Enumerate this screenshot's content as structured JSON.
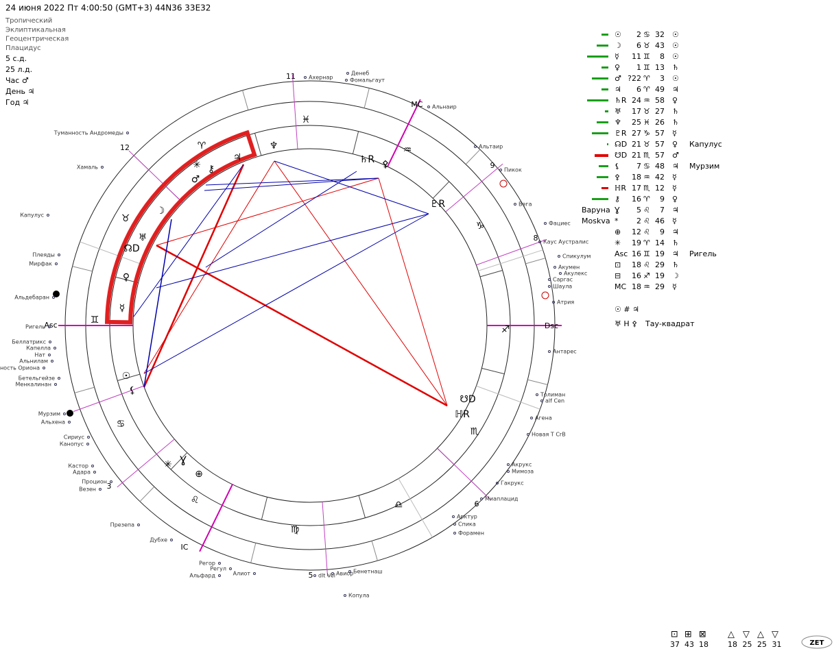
{
  "header": "24 июня 2022  Пт   4:00:50 (GMT+3) 44N36  33E32",
  "settings": [
    "Тропический",
    "Эклиптикальная",
    "Геоцентрическая",
    "Плацидус"
  ],
  "info": [
    "5 с.д.",
    "25 л.д.",
    "Час ♂",
    "День ♃",
    "Год ♃"
  ],
  "table": {
    "rows": [
      {
        "glyph": "☉",
        "deg": "2",
        "sign": "♋",
        "min": "32",
        "ruler": "☉"
      },
      {
        "glyph": "☽",
        "deg": "6",
        "sign": "♉",
        "min": "43",
        "ruler": "☉"
      },
      {
        "glyph": "☿",
        "deg": "11",
        "sign": "♊",
        "min": "8",
        "ruler": "☉"
      },
      {
        "glyph": "♀",
        "deg": "1",
        "sign": "♊",
        "min": "13",
        "ruler": "♄"
      },
      {
        "glyph": "♂",
        "deg": "?22",
        "sign": "♈",
        "min": "3",
        "ruler": "☉"
      },
      {
        "glyph": "♃",
        "deg": "6",
        "sign": "♈",
        "min": "49",
        "ruler": "♃"
      },
      {
        "glyph": "♄R",
        "deg": "24",
        "sign": "♒",
        "min": "58",
        "ruler": "♀"
      },
      {
        "glyph": "♅",
        "deg": "17",
        "sign": "♉",
        "min": "27",
        "ruler": "♄"
      },
      {
        "glyph": "♆",
        "deg": "25",
        "sign": "♓",
        "min": "26",
        "ruler": "♄"
      },
      {
        "glyph": "♇R",
        "deg": "27",
        "sign": "♑",
        "min": "57",
        "ruler": "☿"
      },
      {
        "glyph": "☊D",
        "deg": "21",
        "sign": "♉",
        "min": "57",
        "ruler": "♀",
        "note": "Капулус"
      },
      {
        "glyph": "☋D",
        "deg": "21",
        "sign": "♏",
        "min": "57",
        "ruler": "♂"
      },
      {
        "glyph": "⚸",
        "deg": "7",
        "sign": "♋",
        "min": "48",
        "ruler": "♃",
        "note": "Мурзим"
      },
      {
        "glyph": "⚴",
        "deg": "18",
        "sign": "♒",
        "min": "42",
        "ruler": "☿"
      },
      {
        "glyph": "ℍR",
        "deg": "17",
        "sign": "♏",
        "min": "12",
        "ruler": "☿"
      },
      {
        "glyph": "⚷",
        "deg": "16",
        "sign": "♈",
        "min": "9",
        "ruler": "♀"
      },
      {
        "name": "Варуна",
        "glyph": "Ɣ",
        "deg": "5",
        "sign": "♌",
        "min": "7",
        "ruler": "♃"
      },
      {
        "name": "Moskva",
        "glyph": "*",
        "deg": "2",
        "sign": "♌",
        "min": "46",
        "ruler": "☿"
      },
      {
        "glyph": "⊕",
        "deg": "12",
        "sign": "♌",
        "min": "9",
        "ruler": "♃"
      },
      {
        "glyph": "✳",
        "deg": "19",
        "sign": "♈",
        "min": "14",
        "ruler": "♄"
      },
      {
        "glyph": "Asc",
        "deg": "16",
        "sign": "♊",
        "min": "19",
        "ruler": "♃",
        "note": "Ригель"
      },
      {
        "glyph": "⊡",
        "deg": "18",
        "sign": "♌",
        "min": "29",
        "ruler": "♄"
      },
      {
        "glyph": "⊟",
        "deg": "16",
        "sign": "♐",
        "min": "19",
        "ruler": "☽"
      },
      {
        "glyph": "MC",
        "deg": "18",
        "sign": "♒",
        "min": "29",
        "ruler": "☿"
      }
    ]
  },
  "notes": [
    {
      "symbols": "☉ # ♃"
    },
    {
      "symbols": "♅ H ⚴",
      "label": "Тау-квадрат"
    }
  ],
  "wheel": {
    "houses": [
      "11",
      "MC",
      "9",
      "8",
      "Dsc",
      "6",
      "5",
      "IC",
      "3",
      "Asc",
      "12"
    ],
    "signs": [
      "♓",
      "♒",
      "♑",
      "♐",
      "♏",
      "♎",
      "♍",
      "♌",
      "♋",
      "♊",
      "♉",
      "♈"
    ],
    "planets": [
      "♆",
      "♃",
      "♄R",
      "♇R",
      "☽",
      "♂",
      "⚷",
      "✳",
      "♅",
      "☊D",
      "♀",
      "☿",
      "☉",
      "⚸",
      "☋D",
      "ℍR",
      "Ɣ",
      "⊕",
      "✳",
      "⚴"
    ],
    "stars": [
      "Ахернар",
      "Денеб",
      "Фомальгаут",
      "Альнаир",
      "Альтаир",
      "Пикок",
      "Вега",
      "Фациес",
      "Каус Аустралис",
      "Спикулум",
      "Акумен",
      "Акулекс",
      "Саргас",
      "Шаула",
      "Атрия",
      "Антарес",
      "Толиман",
      "alf Cen",
      "Агена",
      "Новая Т CrB",
      "Акрукс",
      "Мимоза",
      "Гакрукс",
      "Миаплацид",
      "Арктур",
      "Спика",
      "Форамен",
      "Бенетнаш",
      "Авиор",
      "dlt Vel",
      "Копула",
      "Алиот",
      "Регор",
      "Регул",
      "Альфард",
      "Дубхе",
      "Презепа",
      "Процион",
      "Везен",
      "Кастор",
      "Адара",
      "Сириус",
      "Канопус",
      "Мурзим",
      "Альхена",
      "Бетельгейзе",
      "Менкалинан",
      "Беллатрикс",
      "Капелла",
      "Нат",
      "Альнилам",
      "Туманность Ориона",
      "Ригель",
      "Альдебаран",
      "Мирфак",
      "Плеяды",
      "Капулус",
      "Хамаль",
      "Туманность Андромеды"
    ]
  },
  "footer": {
    "grid_counts": [
      "37",
      "43",
      "18"
    ],
    "tri_counts": [
      "18",
      "25",
      "25",
      "31"
    ],
    "logo": "ZET"
  }
}
